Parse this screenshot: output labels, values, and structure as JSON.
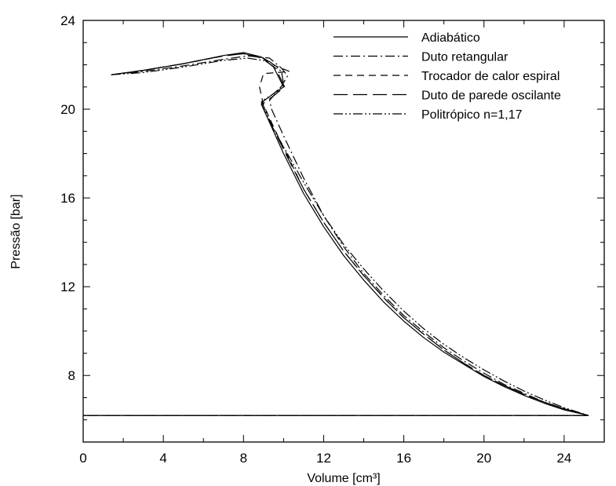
{
  "chart_data": {
    "type": "line",
    "title": "",
    "xlabel": "Volume [cm³]",
    "ylabel": "Pressão [bar]",
    "xlim": [
      0,
      26
    ],
    "ylim": [
      5,
      24
    ],
    "xticks": [
      "0",
      "4",
      "8",
      "12",
      "16",
      "20",
      "24"
    ],
    "yticks": [
      "8",
      "12",
      "16",
      "20",
      "24"
    ],
    "x_minor_step": 2,
    "y_minor_step": 1,
    "grid": false,
    "legend_position": "top-right",
    "series": [
      {
        "name": "Adiabático",
        "style": "solid",
        "points": [
          [
            1.4,
            21.55
          ],
          [
            3,
            21.75
          ],
          [
            5,
            22.05
          ],
          [
            7,
            22.42
          ],
          [
            8,
            22.55
          ],
          [
            8.9,
            22.35
          ],
          [
            9.5,
            21.9
          ],
          [
            10.0,
            21.0
          ],
          [
            9.5,
            20.7
          ],
          [
            8.9,
            20.3
          ],
          [
            8.9,
            20.2
          ],
          [
            9.5,
            19.0
          ],
          [
            10,
            18.0
          ],
          [
            11,
            16.2
          ],
          [
            12,
            14.7
          ],
          [
            13,
            13.4
          ],
          [
            14,
            12.3
          ],
          [
            15,
            11.3
          ],
          [
            16,
            10.45
          ],
          [
            17,
            9.7
          ],
          [
            18,
            9.05
          ],
          [
            19,
            8.5
          ],
          [
            20,
            7.95
          ],
          [
            21,
            7.5
          ],
          [
            22,
            7.1
          ],
          [
            23,
            6.75
          ],
          [
            24,
            6.45
          ],
          [
            25.2,
            6.2
          ],
          [
            22,
            6.2
          ],
          [
            16,
            6.2
          ],
          [
            10,
            6.2
          ],
          [
            5,
            6.2
          ],
          [
            0,
            6.2
          ]
        ]
      },
      {
        "name": "Duto retangular",
        "style": "dashdot",
        "points": [
          [
            1.4,
            21.55
          ],
          [
            3,
            21.7
          ],
          [
            5,
            21.95
          ],
          [
            7,
            22.25
          ],
          [
            8.2,
            22.4
          ],
          [
            9.3,
            22.3
          ],
          [
            9.9,
            21.85
          ],
          [
            10.2,
            21.5
          ],
          [
            9.8,
            20.9
          ],
          [
            9.3,
            20.4
          ],
          [
            9.4,
            20.0
          ],
          [
            10,
            18.8
          ],
          [
            11,
            16.9
          ],
          [
            12,
            15.2
          ],
          [
            13,
            13.8
          ],
          [
            14,
            12.6
          ],
          [
            15,
            11.6
          ],
          [
            16,
            10.7
          ],
          [
            17,
            9.95
          ],
          [
            18,
            9.25
          ],
          [
            19,
            8.65
          ],
          [
            20,
            8.1
          ],
          [
            21,
            7.6
          ],
          [
            22,
            7.2
          ],
          [
            23,
            6.8
          ],
          [
            24,
            6.5
          ],
          [
            25.2,
            6.2
          ],
          [
            20,
            6.2
          ],
          [
            12,
            6.2
          ],
          [
            6,
            6.2
          ],
          [
            0,
            6.2
          ]
        ]
      },
      {
        "name": "Trocador de calor espiral",
        "style": "short-dash",
        "points": [
          [
            1.4,
            21.55
          ],
          [
            3,
            21.75
          ],
          [
            5,
            22.05
          ],
          [
            7,
            22.4
          ],
          [
            8,
            22.5
          ],
          [
            9.0,
            22.3
          ],
          [
            9.6,
            21.95
          ],
          [
            10.3,
            21.7
          ],
          [
            9.0,
            21.6
          ],
          [
            8.8,
            21.0
          ],
          [
            9.0,
            20.2
          ],
          [
            9.6,
            19.0
          ],
          [
            10.2,
            17.9
          ],
          [
            11,
            16.4
          ],
          [
            12,
            14.9
          ],
          [
            13,
            13.6
          ],
          [
            14,
            12.5
          ],
          [
            15,
            11.5
          ],
          [
            16,
            10.6
          ],
          [
            17,
            9.85
          ],
          [
            18,
            9.15
          ],
          [
            19,
            8.55
          ],
          [
            20,
            8.0
          ],
          [
            21,
            7.55
          ],
          [
            22,
            7.15
          ],
          [
            23,
            6.8
          ],
          [
            24,
            6.5
          ],
          [
            25.2,
            6.2
          ],
          [
            20,
            6.2
          ],
          [
            12,
            6.2
          ],
          [
            6,
            6.2
          ],
          [
            0,
            6.2
          ]
        ]
      },
      {
        "name": "Duto de parede oscilante",
        "style": "long-dash",
        "points": [
          [
            1.4,
            21.55
          ],
          [
            3,
            21.75
          ],
          [
            5,
            22.05
          ],
          [
            7,
            22.4
          ],
          [
            8,
            22.5
          ],
          [
            8.9,
            22.3
          ],
          [
            9.6,
            21.85
          ],
          [
            10.05,
            21.0
          ],
          [
            9.5,
            20.6
          ],
          [
            8.9,
            20.2
          ],
          [
            9.5,
            19.1
          ],
          [
            10.1,
            18.0
          ],
          [
            11,
            16.4
          ],
          [
            12,
            14.9
          ],
          [
            13,
            13.6
          ],
          [
            14,
            12.5
          ],
          [
            15,
            11.5
          ],
          [
            16,
            10.6
          ],
          [
            17,
            9.85
          ],
          [
            18,
            9.15
          ],
          [
            19,
            8.55
          ],
          [
            20,
            8.0
          ],
          [
            21,
            7.55
          ],
          [
            22,
            7.15
          ],
          [
            23,
            6.8
          ],
          [
            24,
            6.5
          ],
          [
            25.2,
            6.2
          ],
          [
            20,
            6.2
          ],
          [
            12,
            6.2
          ],
          [
            6,
            6.2
          ],
          [
            0,
            6.2
          ]
        ]
      },
      {
        "name": "Politrópico n=1,17",
        "style": "dash-dot-dot",
        "points": [
          [
            1.4,
            21.55
          ],
          [
            3,
            21.65
          ],
          [
            5,
            21.9
          ],
          [
            7,
            22.2
          ],
          [
            8.2,
            22.3
          ],
          [
            9.3,
            22.15
          ],
          [
            9.9,
            21.7
          ],
          [
            10.0,
            21.1
          ],
          [
            9.5,
            20.7
          ],
          [
            8.9,
            20.35
          ],
          [
            9.5,
            19.1
          ],
          [
            10,
            18.3
          ],
          [
            11,
            16.7
          ],
          [
            12,
            15.2
          ],
          [
            13,
            13.9
          ],
          [
            14,
            12.8
          ],
          [
            15,
            11.8
          ],
          [
            16,
            10.9
          ],
          [
            17,
            10.1
          ],
          [
            18,
            9.4
          ],
          [
            19,
            8.8
          ],
          [
            20,
            8.25
          ],
          [
            21,
            7.75
          ],
          [
            22,
            7.3
          ],
          [
            23,
            6.9
          ],
          [
            24,
            6.55
          ],
          [
            25.2,
            6.2
          ],
          [
            20,
            6.2
          ],
          [
            12,
            6.2
          ],
          [
            6,
            6.2
          ],
          [
            0,
            6.2
          ]
        ]
      }
    ]
  }
}
